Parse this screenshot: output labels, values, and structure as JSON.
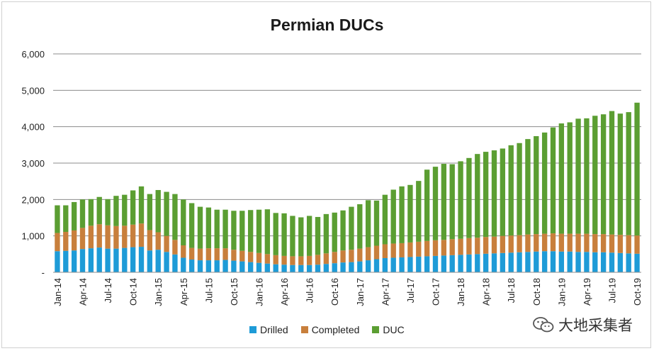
{
  "chart_data": {
    "type": "bar",
    "stacked": true,
    "title": "Permian DUCs",
    "xlabel": "",
    "ylabel": "",
    "ylim": [
      0,
      6000
    ],
    "yticks": [
      "-",
      "1,000",
      "2,000",
      "3,000",
      "4,000",
      "5,000",
      "6,000"
    ],
    "ytick_values": [
      0,
      1000,
      2000,
      3000,
      4000,
      5000,
      6000
    ],
    "grid": true,
    "legend_position": "bottom",
    "categories": [
      "Jan-14",
      "Feb-14",
      "Mar-14",
      "Apr-14",
      "May-14",
      "Jun-14",
      "Jul-14",
      "Aug-14",
      "Sep-14",
      "Oct-14",
      "Nov-14",
      "Dec-14",
      "Jan-15",
      "Feb-15",
      "Mar-15",
      "Apr-15",
      "May-15",
      "Jun-15",
      "Jul-15",
      "Aug-15",
      "Sep-15",
      "Oct-15",
      "Nov-15",
      "Dec-15",
      "Jan-16",
      "Feb-16",
      "Mar-16",
      "Apr-16",
      "May-16",
      "Jun-16",
      "Jul-16",
      "Aug-16",
      "Sep-16",
      "Oct-16",
      "Nov-16",
      "Dec-16",
      "Jan-17",
      "Feb-17",
      "Mar-17",
      "Apr-17",
      "May-17",
      "Jun-17",
      "Jul-17",
      "Aug-17",
      "Sep-17",
      "Oct-17",
      "Nov-17",
      "Dec-17",
      "Jan-18",
      "Feb-18",
      "Mar-18",
      "Apr-18",
      "May-18",
      "Jun-18",
      "Jul-18",
      "Aug-18",
      "Sep-18",
      "Oct-18",
      "Nov-18",
      "Dec-18",
      "Jan-19",
      "Feb-19",
      "Mar-19",
      "Apr-19",
      "May-19",
      "Jun-19",
      "Jul-19",
      "Aug-19",
      "Sep-19",
      "Oct-19"
    ],
    "xtick_labels": [
      "Jan-14",
      "Apr-14",
      "Jul-14",
      "Oct-14",
      "Jan-15",
      "Apr-15",
      "Jul-15",
      "Oct-15",
      "Jan-16",
      "Apr-16",
      "Jul-16",
      "Oct-16",
      "Jan-17",
      "Apr-17",
      "Jul-17",
      "Oct-17",
      "Jan-18",
      "Apr-18",
      "Jul-18",
      "Oct-18",
      "Jan-19",
      "Apr-19",
      "Jul-19",
      "Oct-19"
    ],
    "series": [
      {
        "name": "Drilled",
        "color": "#1e9bd7",
        "values": [
          580,
          590,
          600,
          640,
          660,
          680,
          650,
          650,
          670,
          690,
          700,
          600,
          620,
          560,
          490,
          400,
          350,
          330,
          330,
          330,
          340,
          320,
          300,
          280,
          260,
          240,
          220,
          210,
          200,
          200,
          200,
          210,
          230,
          250,
          270,
          280,
          300,
          330,
          360,
          390,
          400,
          410,
          420,
          430,
          440,
          450,
          460,
          470,
          480,
          490,
          500,
          510,
          520,
          530,
          540,
          550,
          560,
          570,
          580,
          580,
          570,
          570,
          560,
          560,
          550,
          550,
          540,
          530,
          520,
          510
        ]
      },
      {
        "name": "Completed",
        "color": "#c87f3c",
        "values": [
          500,
          520,
          550,
          580,
          620,
          640,
          640,
          620,
          610,
          620,
          640,
          560,
          480,
          440,
          400,
          340,
          320,
          320,
          330,
          330,
          320,
          300,
          290,
          280,
          270,
          260,
          250,
          240,
          240,
          240,
          250,
          270,
          290,
          310,
          330,
          340,
          350,
          360,
          370,
          380,
          390,
          390,
          400,
          410,
          420,
          430,
          430,
          440,
          440,
          450,
          450,
          460,
          460,
          470,
          470,
          470,
          480,
          480,
          480,
          490,
          490,
          490,
          500,
          500,
          500,
          500,
          500,
          500,
          500,
          500
        ]
      },
      {
        "name": "DUC",
        "color": "#5b9e32",
        "values": [
          760,
          730,
          780,
          780,
          730,
          750,
          720,
          830,
          850,
          940,
          1020,
          990,
          1160,
          1210,
          1260,
          1260,
          1230,
          1150,
          1120,
          1060,
          1060,
          1070,
          1100,
          1150,
          1190,
          1230,
          1160,
          1170,
          1110,
          1070,
          1100,
          1040,
          1080,
          1080,
          1100,
          1180,
          1220,
          1290,
          1240,
          1360,
          1480,
          1560,
          1580,
          1670,
          1960,
          2020,
          2090,
          2060,
          2130,
          2200,
          2300,
          2340,
          2370,
          2400,
          2480,
          2530,
          2620,
          2690,
          2780,
          2910,
          3030,
          3060,
          3160,
          3170,
          3250,
          3290,
          3390,
          3330,
          3380,
          3650
        ]
      }
    ]
  },
  "watermark": {
    "icon": "wechat-icon",
    "text": "大地采集者"
  }
}
